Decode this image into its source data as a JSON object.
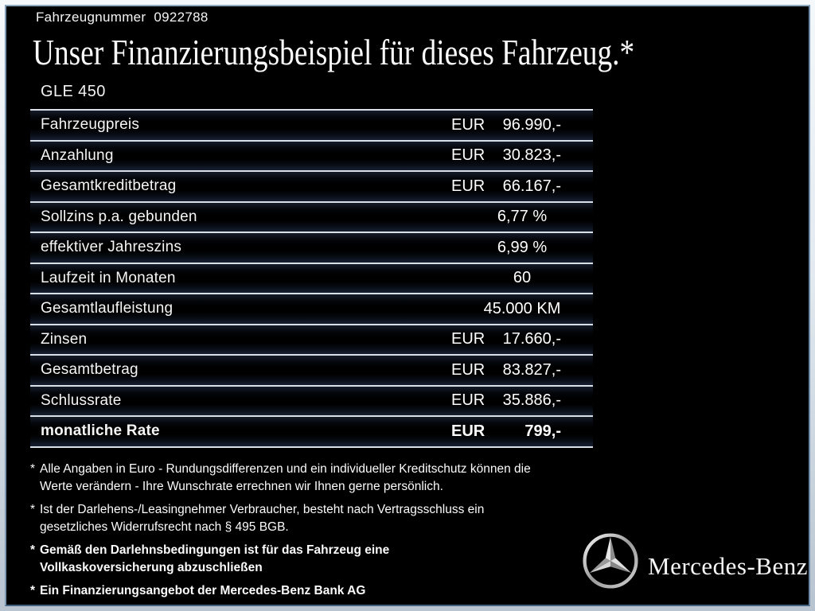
{
  "header": {
    "vehicle_number_label": "Fahrzeugnummer",
    "vehicle_number": "0922788",
    "title": "Unser Finanzierungsbeispiel für dieses Fahrzeug.*",
    "model": "GLE 450"
  },
  "finance_table": {
    "rows": [
      {
        "label": "Fahrzeugpreis",
        "currency": "EUR",
        "value": "96.990,-",
        "align": "eur",
        "bold": false
      },
      {
        "label": "Anzahlung",
        "currency": "EUR",
        "value": "30.823,-",
        "align": "eur",
        "bold": false
      },
      {
        "label": "Gesamtkreditbetrag",
        "currency": "EUR",
        "value": "66.167,-",
        "align": "eur",
        "bold": false
      },
      {
        "label": "Sollzins p.a. gebunden",
        "currency": "",
        "value": "6,77 %",
        "align": "center",
        "bold": false
      },
      {
        "label": "effektiver Jahreszins",
        "currency": "",
        "value": "6,99 %",
        "align": "center",
        "bold": false
      },
      {
        "label": "Laufzeit in Monaten",
        "currency": "",
        "value": "60",
        "align": "center",
        "bold": false
      },
      {
        "label": "Gesamtlaufleistung",
        "currency": "",
        "value": "45.000 KM",
        "align": "center",
        "bold": false
      },
      {
        "label": "Zinsen",
        "currency": "EUR",
        "value": "17.660,-",
        "align": "eur",
        "bold": false
      },
      {
        "label": "Gesamtbetrag",
        "currency": "EUR",
        "value": "83.827,-",
        "align": "eur",
        "bold": false
      },
      {
        "label": "Schlussrate",
        "currency": "EUR",
        "value": "35.886,-",
        "align": "eur",
        "bold": false
      },
      {
        "label": "monatliche Rate",
        "currency": "EUR",
        "value": "799,-",
        "align": "eur",
        "bold": true
      }
    ]
  },
  "footnotes": [
    {
      "marker": "*",
      "bold": false,
      "lines": [
        "Alle Angaben in Euro - Rundungsdifferenzen und ein individueller Kreditschutz können die",
        "Werte verändern - Ihre Wunschrate errechnen wir Ihnen gerne persönlich."
      ]
    },
    {
      "marker": "*",
      "bold": false,
      "lines": [
        "Ist der Darlehens-/Leasingnehmer Verbraucher, besteht nach Vertragsschluss ein",
        "gesetzliches Widerrufsrecht nach § 495 BGB."
      ]
    },
    {
      "marker": "*",
      "bold": true,
      "lines": [
        "Gemäß den Darlehnsbedingungen ist für das Fahrzeug eine",
        "Vollkaskoversicherung abzuschließen"
      ]
    },
    {
      "marker": "*",
      "bold": true,
      "lines": [
        "Ein Finanzierungsangebot der Mercedes-Benz Bank AG"
      ]
    }
  ],
  "brand": {
    "logo_icon": "mercedes-star-icon",
    "wordmark": "Mercedes-Benz",
    "colors": {
      "ring_light": "#f2f2f2",
      "ring_dark": "#5f5f5f",
      "star_light": "#e2e2e2",
      "star_dark": "#8a8a8a"
    }
  },
  "theme": {
    "background": "#000000",
    "text": "#ffffff",
    "divider_line": "#d9dfe6",
    "frame_border": "#6e8caa",
    "outer_frame": "#dfe6ec"
  }
}
